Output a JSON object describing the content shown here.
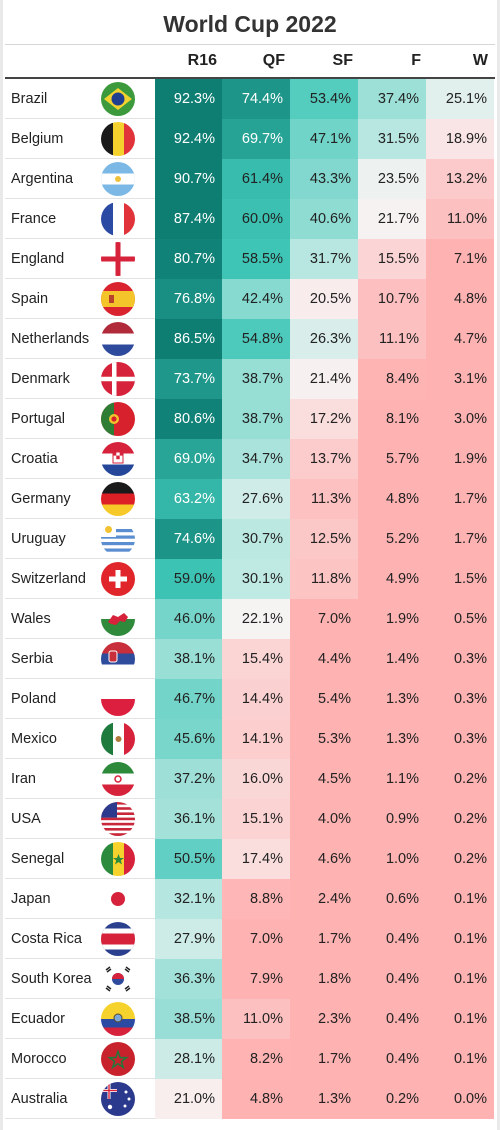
{
  "title": "World Cup 2022",
  "columns": [
    "R16",
    "QF",
    "SF",
    "F",
    "W"
  ],
  "colors": {
    "dark_teal": "#0e7e73",
    "mid_teal": "#3fc6b7",
    "light_teal": "#bfe9e3",
    "neutral": "#f7f3f3",
    "pink": "#ffb2b2"
  },
  "chart_data": {
    "type": "table",
    "title": "World Cup 2022",
    "columns": [
      "R16",
      "QF",
      "SF",
      "F",
      "W"
    ],
    "rows": [
      {
        "team": "Brazil",
        "flag": "brazil-flag-icon",
        "values": [
          "92.3%",
          "74.4%",
          "53.4%",
          "37.4%",
          "25.1%"
        ]
      },
      {
        "team": "Belgium",
        "flag": "belgium-flag-icon",
        "values": [
          "92.4%",
          "69.7%",
          "47.1%",
          "31.5%",
          "18.9%"
        ]
      },
      {
        "team": "Argentina",
        "flag": "argentina-flag-icon",
        "values": [
          "90.7%",
          "61.4%",
          "43.3%",
          "23.5%",
          "13.2%"
        ]
      },
      {
        "team": "France",
        "flag": "france-flag-icon",
        "values": [
          "87.4%",
          "60.0%",
          "40.6%",
          "21.7%",
          "11.0%"
        ]
      },
      {
        "team": "England",
        "flag": "england-flag-icon",
        "values": [
          "80.7%",
          "58.5%",
          "31.7%",
          "15.5%",
          "7.1%"
        ]
      },
      {
        "team": "Spain",
        "flag": "spain-flag-icon",
        "values": [
          "76.8%",
          "42.4%",
          "20.5%",
          "10.7%",
          "4.8%"
        ]
      },
      {
        "team": "Netherlands",
        "flag": "netherlands-flag-icon",
        "values": [
          "86.5%",
          "54.8%",
          "26.3%",
          "11.1%",
          "4.7%"
        ]
      },
      {
        "team": "Denmark",
        "flag": "denmark-flag-icon",
        "values": [
          "73.7%",
          "38.7%",
          "21.4%",
          "8.4%",
          "3.1%"
        ]
      },
      {
        "team": "Portugal",
        "flag": "portugal-flag-icon",
        "values": [
          "80.6%",
          "38.7%",
          "17.2%",
          "8.1%",
          "3.0%"
        ]
      },
      {
        "team": "Croatia",
        "flag": "croatia-flag-icon",
        "values": [
          "69.0%",
          "34.7%",
          "13.7%",
          "5.7%",
          "1.9%"
        ]
      },
      {
        "team": "Germany",
        "flag": "germany-flag-icon",
        "values": [
          "63.2%",
          "27.6%",
          "11.3%",
          "4.8%",
          "1.7%"
        ]
      },
      {
        "team": "Uruguay",
        "flag": "uruguay-flag-icon",
        "values": [
          "74.6%",
          "30.7%",
          "12.5%",
          "5.2%",
          "1.7%"
        ]
      },
      {
        "team": "Switzerland",
        "flag": "switzerland-flag-icon",
        "values": [
          "59.0%",
          "30.1%",
          "11.8%",
          "4.9%",
          "1.5%"
        ]
      },
      {
        "team": "Wales",
        "flag": "wales-flag-icon",
        "values": [
          "46.0%",
          "22.1%",
          "7.0%",
          "1.9%",
          "0.5%"
        ]
      },
      {
        "team": "Serbia",
        "flag": "serbia-flag-icon",
        "values": [
          "38.1%",
          "15.4%",
          "4.4%",
          "1.4%",
          "0.3%"
        ]
      },
      {
        "team": "Poland",
        "flag": "poland-flag-icon",
        "values": [
          "46.7%",
          "14.4%",
          "5.4%",
          "1.3%",
          "0.3%"
        ]
      },
      {
        "team": "Mexico",
        "flag": "mexico-flag-icon",
        "values": [
          "45.6%",
          "14.1%",
          "5.3%",
          "1.3%",
          "0.3%"
        ]
      },
      {
        "team": "Iran",
        "flag": "iran-flag-icon",
        "values": [
          "37.2%",
          "16.0%",
          "4.5%",
          "1.1%",
          "0.2%"
        ]
      },
      {
        "team": "USA",
        "flag": "usa-flag-icon",
        "values": [
          "36.1%",
          "15.1%",
          "4.0%",
          "0.9%",
          "0.2%"
        ]
      },
      {
        "team": "Senegal",
        "flag": "senegal-flag-icon",
        "values": [
          "50.5%",
          "17.4%",
          "4.6%",
          "1.0%",
          "0.2%"
        ]
      },
      {
        "team": "Japan",
        "flag": "japan-flag-icon",
        "values": [
          "32.1%",
          "8.8%",
          "2.4%",
          "0.6%",
          "0.1%"
        ]
      },
      {
        "team": "Costa Rica",
        "flag": "costa-rica-flag-icon",
        "values": [
          "27.9%",
          "7.0%",
          "1.7%",
          "0.4%",
          "0.1%"
        ]
      },
      {
        "team": "South Korea",
        "flag": "south-korea-flag-icon",
        "values": [
          "36.3%",
          "7.9%",
          "1.8%",
          "0.4%",
          "0.1%"
        ]
      },
      {
        "team": "Ecuador",
        "flag": "ecuador-flag-icon",
        "values": [
          "38.5%",
          "11.0%",
          "2.3%",
          "0.4%",
          "0.1%"
        ]
      },
      {
        "team": "Morocco",
        "flag": "morocco-flag-icon",
        "values": [
          "28.1%",
          "8.2%",
          "1.7%",
          "0.4%",
          "0.1%"
        ]
      },
      {
        "team": "Australia",
        "flag": "australia-flag-icon",
        "values": [
          "21.0%",
          "4.8%",
          "1.3%",
          "0.2%",
          "0.0%"
        ]
      }
    ]
  }
}
